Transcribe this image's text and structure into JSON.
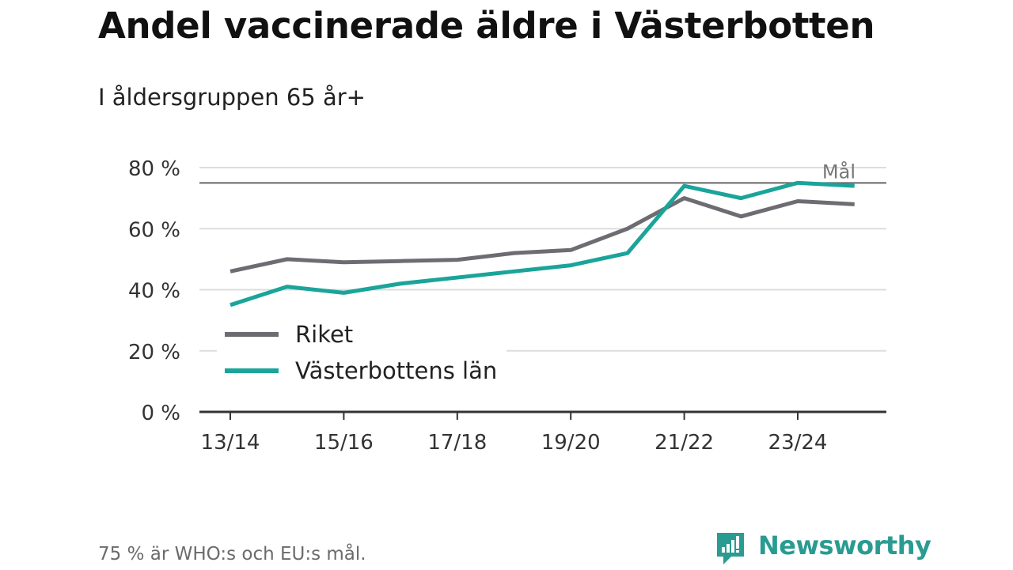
{
  "title": "Andel vaccinerade äldre i Västerbotten",
  "subtitle": "I åldersgruppen 65 år+",
  "footnote": "75 % är WHO:s och EU:s mål.",
  "brand": {
    "name": "Newsworthy",
    "color": "#2a9b91",
    "icon": "newsworthy-logo-icon"
  },
  "colors": {
    "riket": "#6d6c72",
    "vasterbotten": "#1aa49a",
    "grid": "#dddddd",
    "target": "#666666",
    "axis": "#333333"
  },
  "chart_data": {
    "type": "line",
    "x": [
      "13/14",
      "14/15",
      "15/16",
      "16/17",
      "17/18",
      "18/19",
      "19/20",
      "20/21",
      "21/22",
      "22/23",
      "23/24",
      "24/25"
    ],
    "xticks": [
      "13/14",
      "15/16",
      "17/18",
      "19/20",
      "21/22",
      "23/24"
    ],
    "yticks": [
      0,
      20,
      40,
      60,
      80
    ],
    "ytick_labels": [
      "0 %",
      "20 %",
      "40 %",
      "60 %",
      "80 %"
    ],
    "ylim": [
      0,
      80
    ],
    "grid": true,
    "legend_position": "bottom-left",
    "series": [
      {
        "name": "Riket",
        "color": "#6d6c72",
        "values": [
          46,
          50,
          49,
          49.4,
          49.8,
          52,
          53,
          60,
          70,
          64,
          69,
          68
        ]
      },
      {
        "name": "Västerbottens län",
        "color": "#1aa49a",
        "values": [
          35,
          41,
          39,
          42,
          44,
          46,
          48,
          52,
          74,
          70,
          75,
          74
        ]
      }
    ],
    "target": {
      "value": 75,
      "label": "Mål"
    }
  }
}
